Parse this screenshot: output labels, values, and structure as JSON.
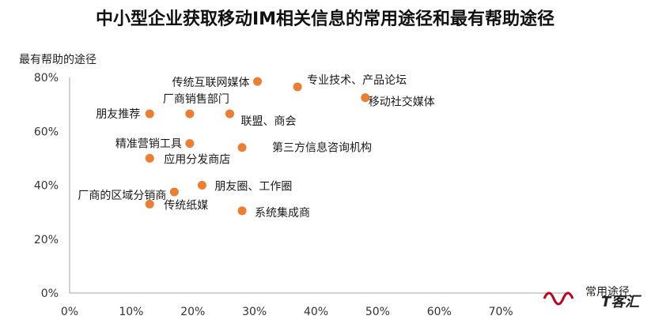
{
  "chart_data": {
    "type": "scatter",
    "title": "中小型企业获取移动IM相关信息的常用途径和最有帮助途径",
    "xlabel": "常用途径",
    "ylabel": "最有帮助的途径",
    "xlim": [
      0,
      0.8
    ],
    "ylim": [
      0,
      0.8
    ],
    "xticks": [
      "0%",
      "10%",
      "20%",
      "30%",
      "40%",
      "50%",
      "60%",
      "70%"
    ],
    "yticks": [
      "0%",
      "20%",
      "40%",
      "60%",
      "80%"
    ],
    "grid": false,
    "marker_color": "#ed7d31",
    "points": [
      {
        "label": "传统互联网媒体",
        "x": 0.305,
        "y": 0.785
      },
      {
        "label": "专业技术、产品论坛",
        "x": 0.37,
        "y": 0.765
      },
      {
        "label": "移动社交媒体",
        "x": 0.48,
        "y": 0.725
      },
      {
        "label": "朋友推荐",
        "x": 0.13,
        "y": 0.665
      },
      {
        "label": "厂商销售部门",
        "x": 0.195,
        "y": 0.665
      },
      {
        "label": "联盟、商会",
        "x": 0.26,
        "y": 0.665
      },
      {
        "label": "精准营销工具",
        "x": 0.195,
        "y": 0.555
      },
      {
        "label": "第三方信息咨询机构",
        "x": 0.28,
        "y": 0.54
      },
      {
        "label": "应用分发商店",
        "x": 0.13,
        "y": 0.5
      },
      {
        "label": "朋友圈、工作圈",
        "x": 0.215,
        "y": 0.4
      },
      {
        "label": "厂商的区域分销商",
        "x": 0.17,
        "y": 0.375
      },
      {
        "label": "传统纸媒",
        "x": 0.13,
        "y": 0.33
      },
      {
        "label": "系统集成商",
        "x": 0.28,
        "y": 0.305
      }
    ]
  },
  "watermark": {
    "text": "T客汇"
  }
}
